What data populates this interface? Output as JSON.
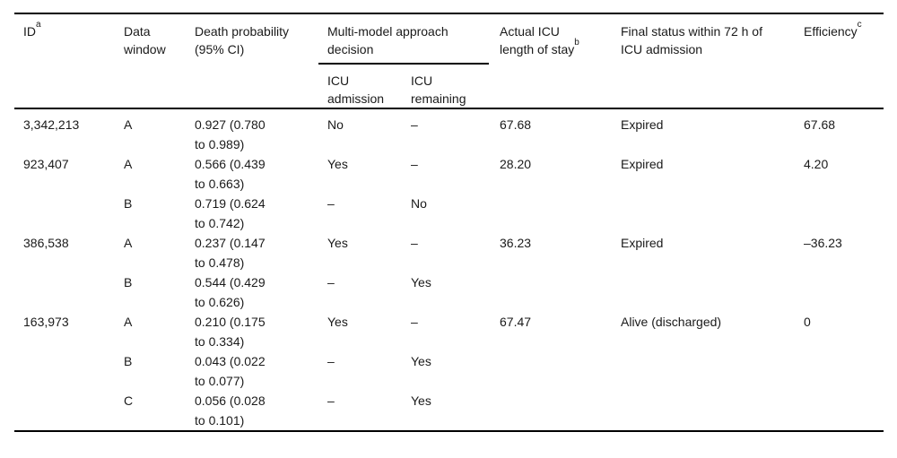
{
  "table": {
    "header": {
      "id": {
        "label": "ID",
        "sup": "a"
      },
      "data_window": {
        "label": "Data\nwindow"
      },
      "death_probability": {
        "label": "Death probability\n(95% CI)"
      },
      "multi_model": {
        "label": "Multi-model approach\ndecision"
      },
      "icu_admission": {
        "label": "ICU\nadmission"
      },
      "icu_remaining": {
        "label": "ICU\nremaining"
      },
      "actual_icu_los": {
        "label": "Actual ICU\nlength of stay",
        "sup": "b"
      },
      "final_status": {
        "label": "Final status within 72 h of\nICU admission"
      },
      "efficiency": {
        "label": "Efficiency",
        "sup": "c"
      }
    },
    "rows": [
      {
        "id": "3,342,213",
        "data_window": "A",
        "death_probability": "0.927 (0.780\nto 0.989)",
        "icu_admission": "No",
        "icu_remaining": "–",
        "actual_icu_los": "67.68",
        "final_status": "Expired",
        "efficiency": "67.68"
      },
      {
        "id": "923,407",
        "data_window": "A",
        "death_probability": "0.566 (0.439\nto 0.663)",
        "icu_admission": "Yes",
        "icu_remaining": "–",
        "actual_icu_los": "28.20",
        "final_status": "Expired",
        "efficiency": "4.20"
      },
      {
        "id": "",
        "data_window": "B",
        "death_probability": "0.719 (0.624\nto 0.742)",
        "icu_admission": "–",
        "icu_remaining": "No",
        "actual_icu_los": "",
        "final_status": "",
        "efficiency": ""
      },
      {
        "id": "386,538",
        "data_window": "A",
        "death_probability": "0.237 (0.147\nto 0.478)",
        "icu_admission": "Yes",
        "icu_remaining": "–",
        "actual_icu_los": "36.23",
        "final_status": "Expired",
        "efficiency": "–36.23"
      },
      {
        "id": "",
        "data_window": "B",
        "death_probability": "0.544 (0.429\nto 0.626)",
        "icu_admission": "–",
        "icu_remaining": "Yes",
        "actual_icu_los": "",
        "final_status": "",
        "efficiency": ""
      },
      {
        "id": "163,973",
        "data_window": "A",
        "death_probability": "0.210 (0.175\nto 0.334)",
        "icu_admission": "Yes",
        "icu_remaining": "–",
        "actual_icu_los": "67.47",
        "final_status": "Alive (discharged)",
        "efficiency": "0"
      },
      {
        "id": "",
        "data_window": "B",
        "death_probability": "0.043 (0.022\nto 0.077)",
        "icu_admission": "–",
        "icu_remaining": "Yes",
        "actual_icu_los": "",
        "final_status": "",
        "efficiency": ""
      },
      {
        "id": "",
        "data_window": "C",
        "death_probability": "0.056 (0.028\nto 0.101)",
        "icu_admission": "–",
        "icu_remaining": "Yes",
        "actual_icu_los": "",
        "final_status": "",
        "efficiency": ""
      }
    ],
    "colors": {
      "text": "#1a1a1a",
      "rule": "#000000",
      "background": "#ffffff"
    }
  }
}
